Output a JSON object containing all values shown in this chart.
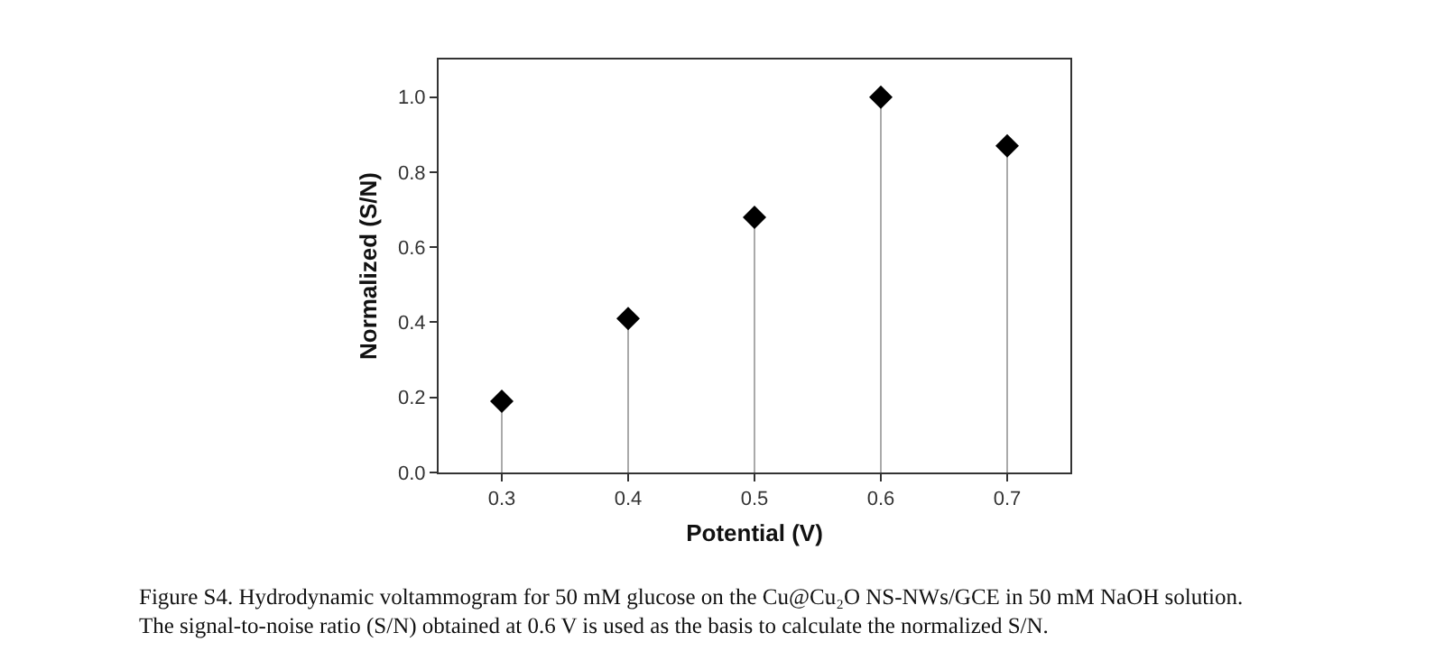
{
  "chart_data": {
    "type": "lollipop",
    "xlabel": "Potential (V)",
    "ylabel": "Normalized (S/N)",
    "x": [
      0.3,
      0.4,
      0.5,
      0.6,
      0.7
    ],
    "series": [
      {
        "color": "#000000",
        "values": [
          0.19,
          0.41,
          0.68,
          1.0,
          0.87
        ]
      }
    ],
    "xlim": [
      0.25,
      0.75
    ],
    "xticks": [
      0.3,
      0.4,
      0.5,
      0.6,
      0.7
    ],
    "ylim": [
      0,
      1.1
    ],
    "yticks": [
      {
        "value": 0,
        "label": "0.0"
      },
      0.2,
      0.4,
      0.6,
      0.8,
      {
        "value": 1,
        "label": "1.0"
      }
    ],
    "marker": "diamond",
    "annotations": [
      "Figure S4. Hydrodynamic voltammogram for 50 mM glucose on the Cu@Cu₂O NS-NWs/GCE in 50 mM NaOH solution.",
      "The signal-to-noise ratio (S/N) obtained at 0.6 V is used as the basis to calculate the normalized S/N."
    ]
  }
}
